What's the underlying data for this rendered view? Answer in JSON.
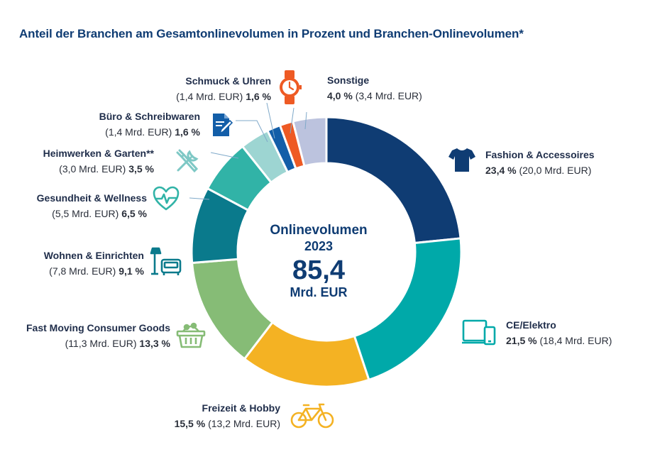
{
  "title": "Anteil der Branchen am Gesamtonlinevolumen in Prozent und Branchen-Onlinevolumen*",
  "center": {
    "line1": "Onlinevolumen",
    "line2": "2023",
    "value": "85,4",
    "unit": "Mrd. EUR"
  },
  "chart_data": {
    "type": "pie",
    "variant": "donut",
    "title": "Anteil der Branchen am Gesamtonlinevolumen in Prozent und Branchen-Onlinevolumen*",
    "total": 85.4,
    "unit": "Mrd. EUR",
    "slices": [
      {
        "name": "Fashion & Accessoires",
        "percent": 23.4,
        "value": 20.0,
        "pct_text": "23,4 %",
        "val_text": "(20,0 Mrd. EUR)",
        "color": "#0f3c73",
        "icon": "tshirt-icon"
      },
      {
        "name": "CE/Elektro",
        "percent": 21.5,
        "value": 18.4,
        "pct_text": "21,5 %",
        "val_text": "(18,4 Mrd. EUR)",
        "color": "#00a9a9",
        "icon": "devices-icon"
      },
      {
        "name": "Freizeit & Hobby",
        "percent": 15.5,
        "value": 13.2,
        "pct_text": "15,5 %",
        "val_text": "(13,2 Mrd. EUR)",
        "color": "#f4b223",
        "icon": "bicycle-icon"
      },
      {
        "name": "Fast Moving Consumer Goods",
        "percent": 13.3,
        "value": 11.3,
        "pct_text": "13,3 %",
        "val_text": "(11,3 Mrd. EUR)",
        "color": "#86bc76",
        "icon": "basket-icon"
      },
      {
        "name": "Wohnen & Einrichten",
        "percent": 9.1,
        "value": 7.8,
        "pct_text": "9,1 %",
        "val_text": "(7,8 Mrd. EUR)",
        "color": "#0a7a8c",
        "icon": "armchair-lamp-icon"
      },
      {
        "name": "Gesundheit & Wellness",
        "percent": 6.5,
        "value": 5.5,
        "pct_text": "6,5 %",
        "val_text": "(5,5 Mrd. EUR)",
        "color": "#31b3a7",
        "icon": "heart-pulse-icon"
      },
      {
        "name": "Heimwerken & Garten**",
        "percent": 3.5,
        "value": 3.0,
        "pct_text": "3,5 %",
        "val_text": "(3,0 Mrd. EUR)",
        "color": "#9dd5d2",
        "icon": "tools-icon"
      },
      {
        "name": "Büro & Schreibwaren",
        "percent": 1.6,
        "value": 1.4,
        "pct_text": "1,6 %",
        "val_text": "(1,4 Mrd. EUR)",
        "color": "#135ea8",
        "icon": "document-pen-icon"
      },
      {
        "name": "Schmuck & Uhren",
        "percent": 1.6,
        "value": 1.4,
        "pct_text": "1,6 %",
        "val_text": "(1,4 Mrd. EUR)",
        "color": "#ee5a24",
        "icon": "watch-icon"
      },
      {
        "name": "Sonstige",
        "percent": 4.0,
        "value": 3.4,
        "pct_text": "4,0 %",
        "val_text": "(3,4 Mrd. EUR)",
        "color": "#bcc3de",
        "icon": "none"
      }
    ]
  }
}
